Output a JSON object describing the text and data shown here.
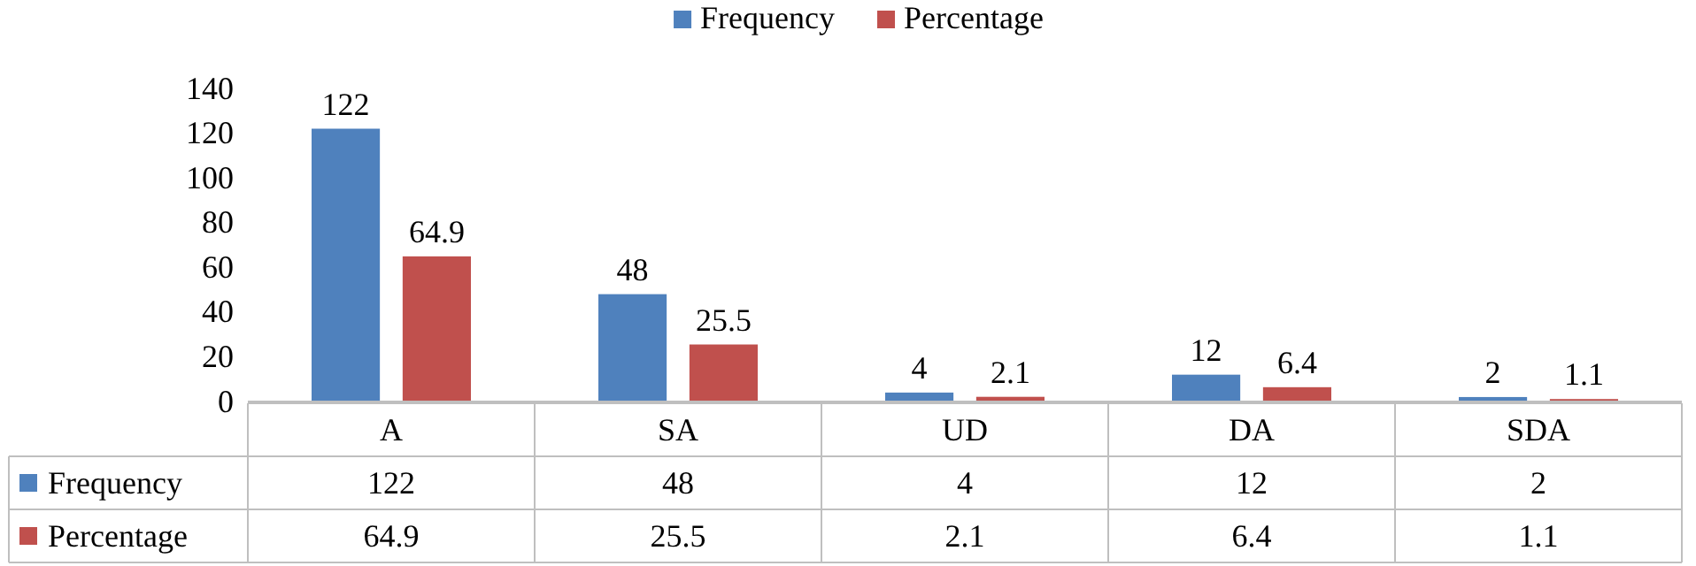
{
  "chart_data": {
    "type": "bar",
    "categories": [
      "A",
      "SA",
      "UD",
      "DA",
      "SDA"
    ],
    "series": [
      {
        "name": "Frequency",
        "color": "#4f81bd",
        "values": [
          122,
          48,
          4,
          12,
          2
        ]
      },
      {
        "name": "Percentage",
        "color": "#c0504d",
        "values": [
          64.9,
          25.5,
          2.1,
          6.4,
          1.1
        ]
      }
    ],
    "annotations": [
      "122",
      "48",
      "4",
      "12",
      "2",
      "64.9",
      "25.5",
      "2.1",
      "6.4",
      "1.1"
    ],
    "ylim": [
      0,
      140
    ],
    "yticks": [
      0,
      20,
      40,
      60,
      80,
      100,
      120,
      140
    ],
    "data_labels": true,
    "legend": "top",
    "grid": false
  }
}
